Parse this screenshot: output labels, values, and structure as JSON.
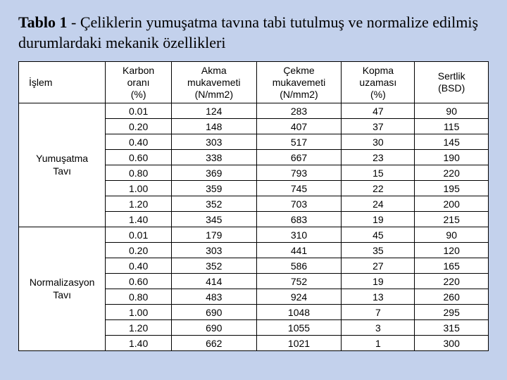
{
  "caption": {
    "label": "Tablo 1",
    "text": "- Çeliklerin yumuşatma tavına tabi tutulmuş ve normalize edilmiş durumlardaki mekanik özellikleri"
  },
  "table": {
    "columns": [
      "İşlem",
      "Karbon\noranı\n(%)",
      "Akma\nmukavemeti\n(N/mm2)",
      "Çekme\nmukavemeti\n(N/mm2)",
      "Kopma\nuzaması\n(%)",
      "Sertlik\n(BSD)"
    ],
    "groups": [
      {
        "process": "Yumuşatma\nTavı",
        "rows": [
          [
            "0.01",
            "124",
            "283",
            "47",
            "90"
          ],
          [
            "0.20",
            "148",
            "407",
            "37",
            "115"
          ],
          [
            "0.40",
            "303",
            "517",
            "30",
            "145"
          ],
          [
            "0.60",
            "338",
            "667",
            "23",
            "190"
          ],
          [
            "0.80",
            "369",
            "793",
            "15",
            "220"
          ],
          [
            "1.00",
            "359",
            "745",
            "22",
            "195"
          ],
          [
            "1.20",
            "352",
            "703",
            "24",
            "200"
          ],
          [
            "1.40",
            "345",
            "683",
            "19",
            "215"
          ]
        ]
      },
      {
        "process": "Normalizasyon\nTavı",
        "rows": [
          [
            "0.01",
            "179",
            "310",
            "45",
            "90"
          ],
          [
            "0.20",
            "303",
            "441",
            "35",
            "120"
          ],
          [
            "0.40",
            "352",
            "586",
            "27",
            "165"
          ],
          [
            "0.60",
            "414",
            "752",
            "19",
            "220"
          ],
          [
            "0.80",
            "483",
            "924",
            "13",
            "260"
          ],
          [
            "1.00",
            "690",
            "1048",
            "7",
            "295"
          ],
          [
            "1.20",
            "690",
            "1055",
            "3",
            "315"
          ],
          [
            "1.40",
            "662",
            "1021",
            "1",
            "300"
          ]
        ]
      }
    ]
  }
}
